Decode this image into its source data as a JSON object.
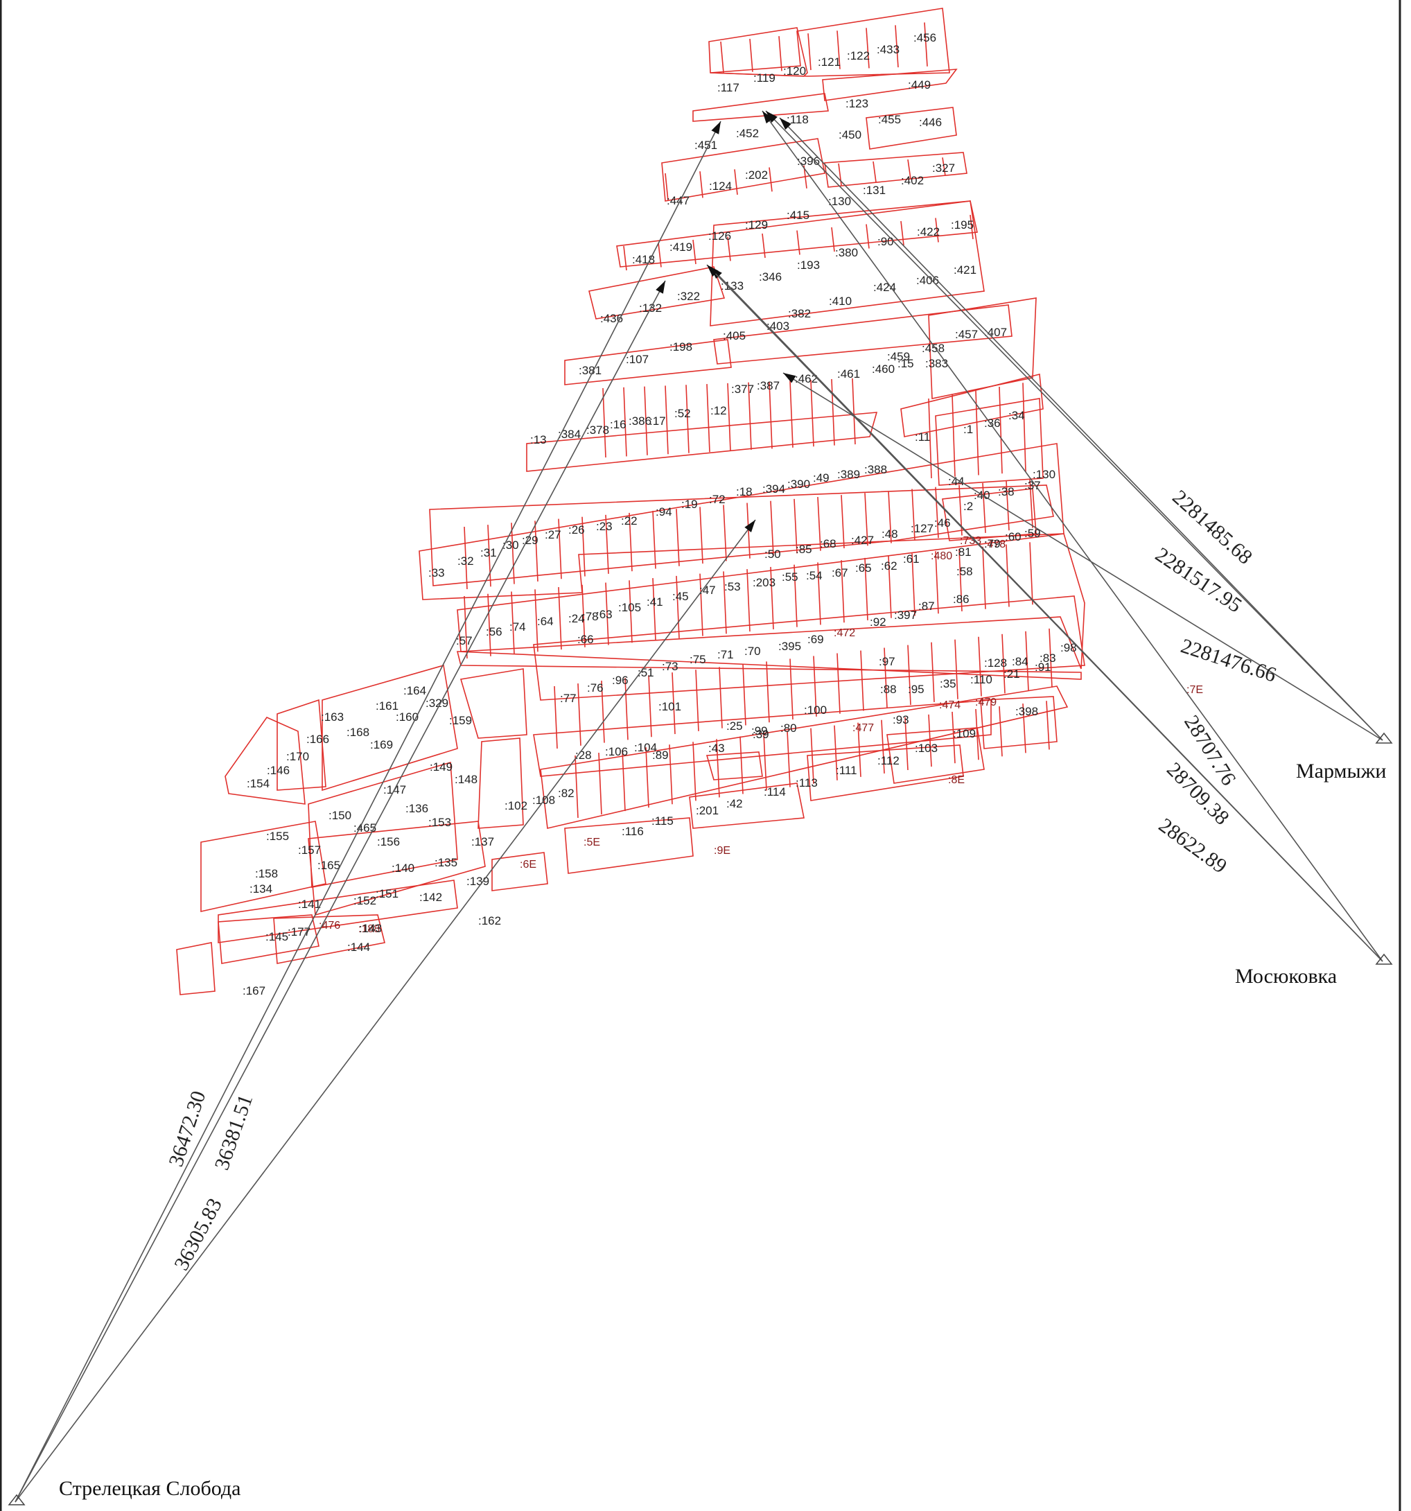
{
  "stations": [
    {
      "id": "marmyzhi",
      "name": "Мармыжи"
    },
    {
      "id": "mosyukovka",
      "name": "Мосюковка"
    },
    {
      "id": "streletskaya",
      "name": "Стрелецкая Слобода"
    }
  ],
  "distances": [
    {
      "id": "d1",
      "label": "2281485.68"
    },
    {
      "id": "d2",
      "label": "2281517.95"
    },
    {
      "id": "d3",
      "label": "2281476.66"
    },
    {
      "id": "d4",
      "label": "28707.76"
    },
    {
      "id": "d5",
      "label": "28709.38"
    },
    {
      "id": "d6",
      "label": "28622.89"
    },
    {
      "id": "d7",
      "label": "36472.30"
    },
    {
      "id": "d8",
      "label": "36381.51"
    },
    {
      "id": "d9",
      "label": "36305.83"
    }
  ],
  "parcel_labels": [
    ":117",
    ":119",
    ":120",
    ":121",
    ":122",
    ":433",
    ":456",
    ":123",
    ":449",
    ":451",
    ":452",
    ":118",
    ":450",
    ":455",
    ":446",
    ":447",
    ":124",
    ":202",
    ":396",
    ":130",
    ":131",
    ":402",
    ":327",
    ":418",
    ":419",
    ":126",
    ":129",
    ":415",
    ":90",
    ":422",
    ":195",
    ":133",
    ":346",
    ":193",
    ":380",
    ":424",
    ":406",
    ":421",
    ":436",
    ":132",
    ":322",
    ":382",
    ":410",
    ":405",
    ":403",
    ":381",
    ":107",
    ":198",
    ":459",
    ":458",
    ":457",
    ":407",
    ":377",
    ":387",
    ":462",
    ":461",
    ":460",
    ":15",
    ":383",
    ":13",
    ":384",
    ":378",
    ":16",
    ":386",
    ":17",
    ":52",
    ":12",
    ":11",
    ":1",
    ":36",
    ":34",
    ":33",
    ":32",
    ":31",
    ":30",
    ":29",
    ":27",
    ":26",
    ":23",
    ":22",
    ":94",
    ":19",
    ":72",
    ":18",
    ":394",
    ":390",
    ":49",
    ":389",
    ":388",
    ":44",
    ":40",
    ":38",
    ":37",
    ":130",
    ":50",
    ":85",
    ":68",
    ":427",
    ":48",
    ":127",
    ":46",
    ":2",
    ":733",
    ":478",
    ":60",
    ":59",
    ":58",
    ":57",
    ":56",
    ":74",
    ":64",
    ":24",
    ":63",
    ":105",
    ":41",
    ":45",
    ":47",
    ":53",
    ":203",
    ":55",
    ":54",
    ":67",
    ":65",
    ":62",
    ":61",
    ":480",
    ":81",
    ":79",
    ":66",
    ":78",
    ":77",
    ":76",
    ":96",
    ":51",
    ":73",
    ":75",
    ":71",
    ":70",
    ":395",
    ":69",
    ":472",
    ":92",
    ":397",
    ":87",
    ":86",
    ":128",
    ":84",
    ":83",
    ":98",
    ":97",
    ":88",
    ":95",
    ":35",
    ":110",
    ":21",
    ":91",
    ":93",
    ":474",
    ":479",
    ":477",
    ":398",
    ":100",
    ":80",
    ":99",
    ":25",
    ":89",
    ":101",
    ":43",
    ":39",
    ":28",
    ":106",
    ":104",
    ":102",
    ":108",
    ":82",
    ":103",
    ":109",
    ":111",
    ":112",
    ":113",
    ":114",
    ":42",
    ":201",
    ":115",
    ":116",
    ":5E",
    ":6E",
    ":7E",
    ":8E",
    ":9E",
    ":162",
    ":167",
    ":164",
    ":163",
    ":161",
    ":160",
    ":329",
    ":159",
    ":166",
    ":168",
    ":169",
    ":170",
    ":146",
    ":154",
    ":149",
    ":148",
    ":147",
    ":136",
    ":153",
    ":150",
    ":465",
    ":156",
    ":155",
    ":157",
    ":165",
    ":158",
    ":134",
    ":137",
    ":135",
    ":139",
    ":140",
    ":151",
    ":152",
    ":142",
    ":141",
    ":476",
    ":188",
    ":143",
    ":144",
    ":177",
    ":145"
  ]
}
